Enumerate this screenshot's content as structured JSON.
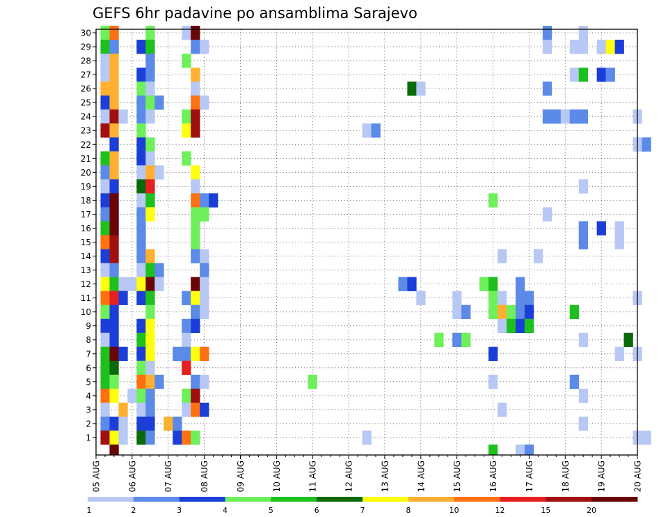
{
  "chart_data": {
    "type": "heatmap",
    "title": "GEFS 6hr padavine po ansamblima Sarajevo",
    "y_ticks": [
      "1",
      "2",
      "3",
      "4",
      "5",
      "6",
      "7",
      "8",
      "9",
      "10",
      "11",
      "12",
      "13",
      "14",
      "15",
      "16",
      "17",
      "18",
      "19",
      "20",
      "21",
      "22",
      "23",
      "24",
      "25",
      "26",
      "27",
      "28",
      "29",
      "30"
    ],
    "x_ticks": [
      "05 AUG",
      "06 AUG",
      "07 AUG",
      "08 AUG",
      "09 AUG",
      "10 AUG",
      "11 AUG",
      "12 AUG",
      "13 AUG",
      "14 AUG",
      "15 AUG",
      "16 AUG",
      "17 AUG",
      "18 AUG",
      "19 AUG",
      "20 AUG"
    ],
    "grid": true,
    "colorbar": {
      "colors": [
        "#b7c8f4",
        "#5b8ae8",
        "#1c3ed8",
        "#6ef05a",
        "#1ec01e",
        "#0a6a0a",
        "#ffff10",
        "#ffb030",
        "#ff7010",
        "#e62020",
        "#a01010",
        "#6a0505"
      ],
      "labels": [
        "1",
        "2",
        "3",
        "4",
        "5",
        "6",
        "7",
        "8",
        "10",
        "12",
        "15",
        "20"
      ]
    },
    "cells": [
      {
        "x": 1,
        "y": 30,
        "c": 4
      },
      {
        "x": 2,
        "y": 30,
        "c": 9
      },
      {
        "x": 6,
        "y": 30,
        "c": 4
      },
      {
        "x": 10,
        "y": 30,
        "c": 1
      },
      {
        "x": 11,
        "y": 30,
        "c": 12
      },
      {
        "x": 50,
        "y": 30,
        "c": 2
      },
      {
        "x": 54,
        "y": 30,
        "c": 1
      },
      {
        "x": 1,
        "y": 29,
        "c": 5
      },
      {
        "x": 2,
        "y": 29,
        "c": 2
      },
      {
        "x": 5,
        "y": 29,
        "c": 3
      },
      {
        "x": 6,
        "y": 29,
        "c": 5
      },
      {
        "x": 11,
        "y": 29,
        "c": 2
      },
      {
        "x": 12,
        "y": 29,
        "c": 1
      },
      {
        "x": 50,
        "y": 29,
        "c": 1
      },
      {
        "x": 53,
        "y": 29,
        "c": 1
      },
      {
        "x": 54,
        "y": 29,
        "c": 1
      },
      {
        "x": 56,
        "y": 29,
        "c": 1
      },
      {
        "x": 57,
        "y": 29,
        "c": 7
      },
      {
        "x": 58,
        "y": 29,
        "c": 3
      },
      {
        "x": 1,
        "y": 28,
        "c": 1
      },
      {
        "x": 2,
        "y": 28,
        "c": 8
      },
      {
        "x": 6,
        "y": 28,
        "c": 2
      },
      {
        "x": 10,
        "y": 28,
        "c": 4
      },
      {
        "x": 1,
        "y": 27,
        "c": 1
      },
      {
        "x": 2,
        "y": 27,
        "c": 8
      },
      {
        "x": 5,
        "y": 27,
        "c": 3
      },
      {
        "x": 6,
        "y": 27,
        "c": 2
      },
      {
        "x": 11,
        "y": 27,
        "c": 8
      },
      {
        "x": 53,
        "y": 27,
        "c": 1
      },
      {
        "x": 54,
        "y": 27,
        "c": 5
      },
      {
        "x": 56,
        "y": 27,
        "c": 3
      },
      {
        "x": 57,
        "y": 27,
        "c": 2
      },
      {
        "x": 1,
        "y": 26,
        "c": 8
      },
      {
        "x": 2,
        "y": 26,
        "c": 8
      },
      {
        "x": 5,
        "y": 26,
        "c": 4
      },
      {
        "x": 6,
        "y": 26,
        "c": 1
      },
      {
        "x": 11,
        "y": 26,
        "c": 1
      },
      {
        "x": 35,
        "y": 26,
        "c": 6
      },
      {
        "x": 36,
        "y": 26,
        "c": 1
      },
      {
        "x": 50,
        "y": 26,
        "c": 2
      },
      {
        "x": 1,
        "y": 25,
        "c": 3
      },
      {
        "x": 2,
        "y": 25,
        "c": 8
      },
      {
        "x": 5,
        "y": 25,
        "c": 2
      },
      {
        "x": 6,
        "y": 25,
        "c": 4
      },
      {
        "x": 7,
        "y": 25,
        "c": 2
      },
      {
        "x": 11,
        "y": 25,
        "c": 9
      },
      {
        "x": 12,
        "y": 25,
        "c": 1
      },
      {
        "x": 1,
        "y": 24,
        "c": 1
      },
      {
        "x": 2,
        "y": 24,
        "c": 11
      },
      {
        "x": 3,
        "y": 24,
        "c": 1
      },
      {
        "x": 5,
        "y": 24,
        "c": 2
      },
      {
        "x": 6,
        "y": 24,
        "c": 1
      },
      {
        "x": 10,
        "y": 24,
        "c": 4
      },
      {
        "x": 11,
        "y": 24,
        "c": 11
      },
      {
        "x": 50,
        "y": 24,
        "c": 2
      },
      {
        "x": 51,
        "y": 24,
        "c": 2
      },
      {
        "x": 52,
        "y": 24,
        "c": 1
      },
      {
        "x": 53,
        "y": 24,
        "c": 2
      },
      {
        "x": 54,
        "y": 24,
        "c": 2
      },
      {
        "x": 60,
        "y": 24,
        "c": 1
      },
      {
        "x": 1,
        "y": 23,
        "c": 11
      },
      {
        "x": 2,
        "y": 23,
        "c": 8
      },
      {
        "x": 5,
        "y": 23,
        "c": 4
      },
      {
        "x": 10,
        "y": 23,
        "c": 7
      },
      {
        "x": 11,
        "y": 23,
        "c": 11
      },
      {
        "x": 30,
        "y": 23,
        "c": 1
      },
      {
        "x": 31,
        "y": 23,
        "c": 2
      },
      {
        "x": 2,
        "y": 22,
        "c": 3
      },
      {
        "x": 5,
        "y": 22,
        "c": 3
      },
      {
        "x": 6,
        "y": 22,
        "c": 4
      },
      {
        "x": 60,
        "y": 22,
        "c": 1
      },
      {
        "x": 61,
        "y": 22,
        "c": 2
      },
      {
        "x": 1,
        "y": 21,
        "c": 5
      },
      {
        "x": 2,
        "y": 21,
        "c": 8
      },
      {
        "x": 5,
        "y": 21,
        "c": 3
      },
      {
        "x": 6,
        "y": 21,
        "c": 1
      },
      {
        "x": 10,
        "y": 21,
        "c": 4
      },
      {
        "x": 1,
        "y": 20,
        "c": 2
      },
      {
        "x": 2,
        "y": 20,
        "c": 8
      },
      {
        "x": 5,
        "y": 20,
        "c": 1
      },
      {
        "x": 6,
        "y": 20,
        "c": 8
      },
      {
        "x": 7,
        "y": 20,
        "c": 1
      },
      {
        "x": 11,
        "y": 20,
        "c": 7
      },
      {
        "x": 1,
        "y": 19,
        "c": 1
      },
      {
        "x": 2,
        "y": 19,
        "c": 3
      },
      {
        "x": 5,
        "y": 19,
        "c": 6
      },
      {
        "x": 6,
        "y": 19,
        "c": 10
      },
      {
        "x": 11,
        "y": 19,
        "c": 1
      },
      {
        "x": 54,
        "y": 19,
        "c": 1
      },
      {
        "x": 1,
        "y": 18,
        "c": 3
      },
      {
        "x": 2,
        "y": 18,
        "c": 12
      },
      {
        "x": 5,
        "y": 18,
        "c": 1
      },
      {
        "x": 6,
        "y": 18,
        "c": 5
      },
      {
        "x": 11,
        "y": 18,
        "c": 9
      },
      {
        "x": 12,
        "y": 18,
        "c": 2
      },
      {
        "x": 13,
        "y": 18,
        "c": 3
      },
      {
        "x": 44,
        "y": 18,
        "c": 4
      },
      {
        "x": 1,
        "y": 17,
        "c": 2
      },
      {
        "x": 2,
        "y": 17,
        "c": 12
      },
      {
        "x": 5,
        "y": 17,
        "c": 2
      },
      {
        "x": 6,
        "y": 17,
        "c": 7
      },
      {
        "x": 11,
        "y": 17,
        "c": 4
      },
      {
        "x": 12,
        "y": 17,
        "c": 4
      },
      {
        "x": 50,
        "y": 17,
        "c": 1
      },
      {
        "x": 1,
        "y": 16,
        "c": 5
      },
      {
        "x": 2,
        "y": 16,
        "c": 12
      },
      {
        "x": 5,
        "y": 16,
        "c": 2
      },
      {
        "x": 11,
        "y": 16,
        "c": 4
      },
      {
        "x": 54,
        "y": 16,
        "c": 2
      },
      {
        "x": 56,
        "y": 16,
        "c": 3
      },
      {
        "x": 58,
        "y": 16,
        "c": 1
      },
      {
        "x": 1,
        "y": 15,
        "c": 9
      },
      {
        "x": 2,
        "y": 15,
        "c": 11
      },
      {
        "x": 5,
        "y": 15,
        "c": 2
      },
      {
        "x": 11,
        "y": 15,
        "c": 4
      },
      {
        "x": 54,
        "y": 15,
        "c": 2
      },
      {
        "x": 58,
        "y": 15,
        "c": 1
      },
      {
        "x": 1,
        "y": 14,
        "c": 3
      },
      {
        "x": 2,
        "y": 14,
        "c": 11
      },
      {
        "x": 5,
        "y": 14,
        "c": 2
      },
      {
        "x": 6,
        "y": 14,
        "c": 8
      },
      {
        "x": 11,
        "y": 14,
        "c": 2
      },
      {
        "x": 12,
        "y": 14,
        "c": 1
      },
      {
        "x": 45,
        "y": 14,
        "c": 1
      },
      {
        "x": 49,
        "y": 14,
        "c": 1
      },
      {
        "x": 1,
        "y": 13,
        "c": 1
      },
      {
        "x": 2,
        "y": 13,
        "c": 2
      },
      {
        "x": 5,
        "y": 13,
        "c": 1
      },
      {
        "x": 6,
        "y": 13,
        "c": 5
      },
      {
        "x": 7,
        "y": 13,
        "c": 2
      },
      {
        "x": 12,
        "y": 13,
        "c": 2
      },
      {
        "x": 1,
        "y": 12,
        "c": 7
      },
      {
        "x": 2,
        "y": 12,
        "c": 5
      },
      {
        "x": 3,
        "y": 12,
        "c": 1
      },
      {
        "x": 4,
        "y": 12,
        "c": 1
      },
      {
        "x": 5,
        "y": 12,
        "c": 7
      },
      {
        "x": 6,
        "y": 12,
        "c": 12
      },
      {
        "x": 7,
        "y": 12,
        "c": 1
      },
      {
        "x": 11,
        "y": 12,
        "c": 12
      },
      {
        "x": 12,
        "y": 12,
        "c": 1
      },
      {
        "x": 34,
        "y": 12,
        "c": 2
      },
      {
        "x": 35,
        "y": 12,
        "c": 3
      },
      {
        "x": 43,
        "y": 12,
        "c": 4
      },
      {
        "x": 44,
        "y": 12,
        "c": 5
      },
      {
        "x": 47,
        "y": 12,
        "c": 2
      },
      {
        "x": 1,
        "y": 11,
        "c": 9
      },
      {
        "x": 2,
        "y": 11,
        "c": 10
      },
      {
        "x": 3,
        "y": 11,
        "c": 3
      },
      {
        "x": 5,
        "y": 11,
        "c": 3
      },
      {
        "x": 6,
        "y": 11,
        "c": 5
      },
      {
        "x": 10,
        "y": 11,
        "c": 2
      },
      {
        "x": 11,
        "y": 11,
        "c": 7
      },
      {
        "x": 12,
        "y": 11,
        "c": 1
      },
      {
        "x": 36,
        "y": 11,
        "c": 1
      },
      {
        "x": 40,
        "y": 11,
        "c": 1
      },
      {
        "x": 44,
        "y": 11,
        "c": 4
      },
      {
        "x": 45,
        "y": 11,
        "c": 1
      },
      {
        "x": 47,
        "y": 11,
        "c": 2
      },
      {
        "x": 48,
        "y": 11,
        "c": 2
      },
      {
        "x": 60,
        "y": 11,
        "c": 1
      },
      {
        "x": 1,
        "y": 10,
        "c": 4
      },
      {
        "x": 2,
        "y": 10,
        "c": 3
      },
      {
        "x": 6,
        "y": 10,
        "c": 4
      },
      {
        "x": 11,
        "y": 10,
        "c": 2
      },
      {
        "x": 12,
        "y": 10,
        "c": 1
      },
      {
        "x": 40,
        "y": 10,
        "c": 1
      },
      {
        "x": 41,
        "y": 10,
        "c": 2
      },
      {
        "x": 44,
        "y": 10,
        "c": 4
      },
      {
        "x": 45,
        "y": 10,
        "c": 8
      },
      {
        "x": 46,
        "y": 10,
        "c": 4
      },
      {
        "x": 47,
        "y": 10,
        "c": 2
      },
      {
        "x": 48,
        "y": 10,
        "c": 3
      },
      {
        "x": 53,
        "y": 10,
        "c": 5
      },
      {
        "x": 1,
        "y": 9,
        "c": 3
      },
      {
        "x": 2,
        "y": 9,
        "c": 3
      },
      {
        "x": 5,
        "y": 9,
        "c": 3
      },
      {
        "x": 6,
        "y": 9,
        "c": 7
      },
      {
        "x": 10,
        "y": 9,
        "c": 2
      },
      {
        "x": 11,
        "y": 9,
        "c": 3
      },
      {
        "x": 45,
        "y": 9,
        "c": 1
      },
      {
        "x": 46,
        "y": 9,
        "c": 5
      },
      {
        "x": 47,
        "y": 9,
        "c": 3
      },
      {
        "x": 48,
        "y": 9,
        "c": 5
      },
      {
        "x": 1,
        "y": 8,
        "c": 1
      },
      {
        "x": 2,
        "y": 8,
        "c": 3
      },
      {
        "x": 5,
        "y": 8,
        "c": 5
      },
      {
        "x": 6,
        "y": 8,
        "c": 7
      },
      {
        "x": 10,
        "y": 8,
        "c": 1
      },
      {
        "x": 38,
        "y": 8,
        "c": 4
      },
      {
        "x": 40,
        "y": 8,
        "c": 2
      },
      {
        "x": 41,
        "y": 8,
        "c": 4
      },
      {
        "x": 54,
        "y": 8,
        "c": 1
      },
      {
        "x": 59,
        "y": 8,
        "c": 6
      },
      {
        "x": 1,
        "y": 7,
        "c": 5
      },
      {
        "x": 2,
        "y": 7,
        "c": 12
      },
      {
        "x": 3,
        "y": 7,
        "c": 3
      },
      {
        "x": 5,
        "y": 7,
        "c": 3
      },
      {
        "x": 6,
        "y": 7,
        "c": 7
      },
      {
        "x": 9,
        "y": 7,
        "c": 2
      },
      {
        "x": 10,
        "y": 7,
        "c": 2
      },
      {
        "x": 11,
        "y": 7,
        "c": 7
      },
      {
        "x": 12,
        "y": 7,
        "c": 9
      },
      {
        "x": 44,
        "y": 7,
        "c": 3
      },
      {
        "x": 58,
        "y": 7,
        "c": 1
      },
      {
        "x": 60,
        "y": 7,
        "c": 1
      },
      {
        "x": 1,
        "y": 6,
        "c": 5
      },
      {
        "x": 2,
        "y": 6,
        "c": 6
      },
      {
        "x": 5,
        "y": 6,
        "c": 4
      },
      {
        "x": 6,
        "y": 6,
        "c": 1
      },
      {
        "x": 10,
        "y": 6,
        "c": 10
      },
      {
        "x": 1,
        "y": 5,
        "c": 5
      },
      {
        "x": 2,
        "y": 5,
        "c": 4
      },
      {
        "x": 5,
        "y": 5,
        "c": 9
      },
      {
        "x": 6,
        "y": 5,
        "c": 8
      },
      {
        "x": 7,
        "y": 5,
        "c": 2
      },
      {
        "x": 11,
        "y": 5,
        "c": 2
      },
      {
        "x": 12,
        "y": 5,
        "c": 1
      },
      {
        "x": 24,
        "y": 5,
        "c": 4
      },
      {
        "x": 44,
        "y": 5,
        "c": 1
      },
      {
        "x": 53,
        "y": 5,
        "c": 2
      },
      {
        "x": 1,
        "y": 4,
        "c": 9
      },
      {
        "x": 2,
        "y": 4,
        "c": 7
      },
      {
        "x": 4,
        "y": 4,
        "c": 1
      },
      {
        "x": 5,
        "y": 4,
        "c": 4
      },
      {
        "x": 6,
        "y": 4,
        "c": 2
      },
      {
        "x": 10,
        "y": 4,
        "c": 4
      },
      {
        "x": 11,
        "y": 4,
        "c": 11
      },
      {
        "x": 54,
        "y": 4,
        "c": 1
      },
      {
        "x": 1,
        "y": 3,
        "c": 1
      },
      {
        "x": 3,
        "y": 3,
        "c": 8
      },
      {
        "x": 5,
        "y": 3,
        "c": 1
      },
      {
        "x": 6,
        "y": 3,
        "c": 2
      },
      {
        "x": 10,
        "y": 3,
        "c": 1
      },
      {
        "x": 11,
        "y": 3,
        "c": 9
      },
      {
        "x": 12,
        "y": 3,
        "c": 3
      },
      {
        "x": 45,
        "y": 3,
        "c": 1
      },
      {
        "x": 1,
        "y": 2,
        "c": 2
      },
      {
        "x": 2,
        "y": 2,
        "c": 3
      },
      {
        "x": 3,
        "y": 2,
        "c": 1
      },
      {
        "x": 5,
        "y": 2,
        "c": 3
      },
      {
        "x": 6,
        "y": 2,
        "c": 3
      },
      {
        "x": 8,
        "y": 2,
        "c": 8
      },
      {
        "x": 9,
        "y": 2,
        "c": 2
      },
      {
        "x": 54,
        "y": 2,
        "c": 1
      },
      {
        "x": 1,
        "y": 1,
        "c": 11
      },
      {
        "x": 2,
        "y": 1,
        "c": 7
      },
      {
        "x": 3,
        "y": 1,
        "c": 1
      },
      {
        "x": 5,
        "y": 1,
        "c": 6
      },
      {
        "x": 6,
        "y": 1,
        "c": 2
      },
      {
        "x": 9,
        "y": 1,
        "c": 3
      },
      {
        "x": 10,
        "y": 1,
        "c": 9
      },
      {
        "x": 11,
        "y": 1,
        "c": 4
      },
      {
        "x": 30,
        "y": 1,
        "c": 1
      },
      {
        "x": 60,
        "y": 1,
        "c": 1
      },
      {
        "x": 61,
        "y": 1,
        "c": 1
      },
      {
        "x": 2,
        "y": 0,
        "c": 12
      },
      {
        "x": 44,
        "y": 0,
        "c": 5
      },
      {
        "x": 47,
        "y": 0,
        "c": 1
      },
      {
        "x": 48,
        "y": 0,
        "c": 2
      }
    ]
  }
}
